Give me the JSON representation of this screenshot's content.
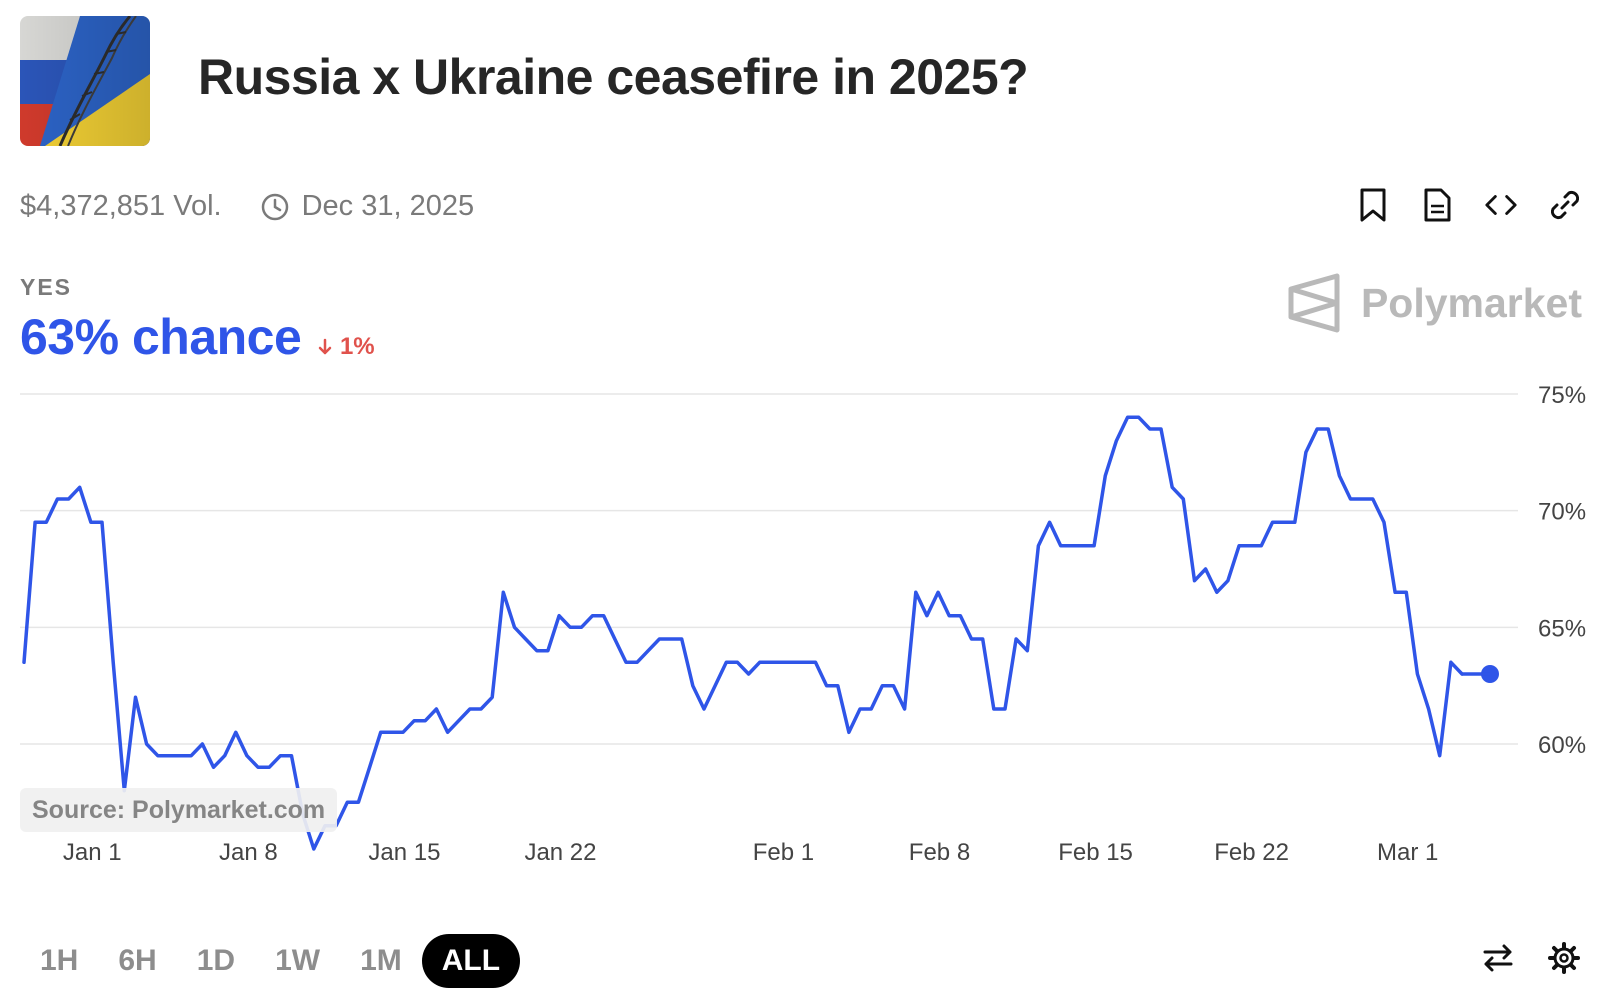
{
  "market": {
    "title": "Russia x Ukraine ceasefire in 2025?",
    "volume": "$4,372,851 Vol.",
    "end_date": "Dec 31, 2025",
    "outcome_label": "YES",
    "probability_text": "63% chance",
    "change_text": "1%",
    "change_direction": "down",
    "accent_color": "#2f55e8",
    "negative_color": "#e0524c"
  },
  "icons": {
    "clock": "clock-icon",
    "bookmark": "bookmark-icon",
    "document": "document-icon",
    "embed": "code-icon",
    "link": "link-icon",
    "swap": "swap-icon",
    "settings": "gear-icon",
    "arrow_down": "arrow-down-icon"
  },
  "brand": {
    "name": "Polymarket"
  },
  "source_label": "Source: Polymarket.com",
  "time_ranges": [
    "1H",
    "6H",
    "1D",
    "1W",
    "1M",
    "ALL"
  ],
  "selected_range": "ALL",
  "chart_data": {
    "type": "line",
    "title": "",
    "xlabel": "",
    "ylabel": "",
    "x_start": "Dec 31",
    "x_step": "12h",
    "x_ticks": [
      "Jan 1",
      "Jan 8",
      "Jan 15",
      "Jan 22",
      "Feb 1",
      "Feb 8",
      "Feb 15",
      "Feb 22",
      "Mar 1"
    ],
    "y_ticks": [
      "75%",
      "70%",
      "65%",
      "60%"
    ],
    "ylim": [
      55.5,
      75
    ],
    "grid": true,
    "series": [
      {
        "color": "#2f55e8",
        "values": [
          63.5,
          69.5,
          69.5,
          70.5,
          70.5,
          71,
          69.5,
          69.5,
          63.5,
          58,
          62,
          60,
          59.5,
          59.5,
          59.5,
          59.5,
          60,
          59,
          59.5,
          60.5,
          59.5,
          59,
          59,
          59.5,
          59.5,
          57,
          55.5,
          56.5,
          56.5,
          57.5,
          57.5,
          59,
          60.5,
          60.5,
          60.5,
          61,
          61,
          61.5,
          60.5,
          61,
          61.5,
          61.5,
          62,
          66.5,
          65,
          64.5,
          64,
          64,
          65.5,
          65,
          65,
          65.5,
          65.5,
          64.5,
          63.5,
          63.5,
          64,
          64.5,
          64.5,
          64.5,
          62.5,
          61.5,
          62.5,
          63.5,
          63.5,
          63,
          63.5,
          63.5,
          63.5,
          63.5,
          63.5,
          63.5,
          62.5,
          62.5,
          60.5,
          61.5,
          61.5,
          62.5,
          62.5,
          61.5,
          66.5,
          65.5,
          66.5,
          65.5,
          65.5,
          64.5,
          64.5,
          61.5,
          61.5,
          64.5,
          64,
          68.5,
          69.5,
          68.5,
          68.5,
          68.5,
          68.5,
          71.5,
          73,
          74,
          74,
          73.5,
          73.5,
          71,
          70.5,
          67,
          67.5,
          66.5,
          67,
          68.5,
          68.5,
          68.5,
          69.5,
          69.5,
          69.5,
          72.5,
          73.5,
          73.5,
          71.5,
          70.5,
          70.5,
          70.5,
          69.5,
          66.5,
          66.5,
          63,
          61.5,
          59.5,
          63.5,
          63
        ]
      }
    ]
  }
}
